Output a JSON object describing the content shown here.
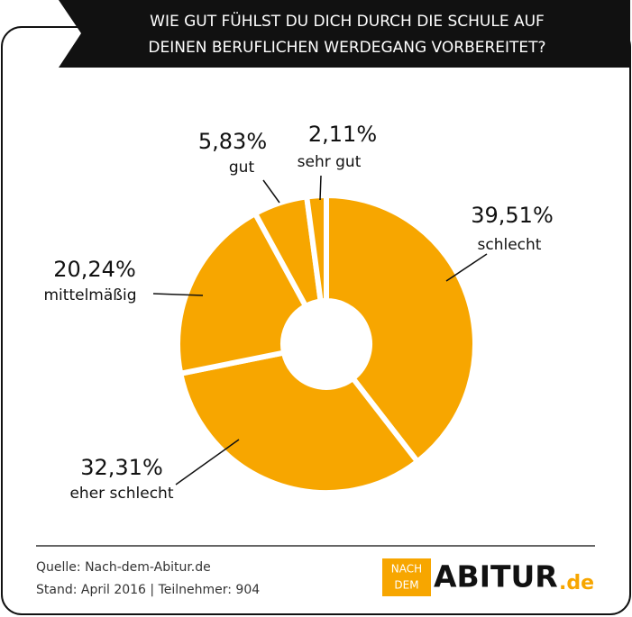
{
  "chart_data": {
    "type": "donut",
    "title": [
      "WIE GUT FÜHLST DU DICH DURCH DIE SCHULE AUF",
      "DEINEN BERUFLICHEN WERDEGANG VORBEREITET?"
    ],
    "categories": [
      "schlecht",
      "eher schlecht",
      "mittelmäßig",
      "gut",
      "sehr gut"
    ],
    "values": [
      39.51,
      32.31,
      20.24,
      5.83,
      2.11
    ],
    "value_labels": [
      "39,51%",
      "32,31%",
      "20,24%",
      "5,83%",
      "2,11%"
    ],
    "color": "#f7a600"
  },
  "footer": {
    "source": "Quelle: Nach-dem-Abitur.de",
    "stand": "Stand: April 2016 | Teilnehmer: 904",
    "logo": {
      "small": [
        "NACH",
        "DEM"
      ],
      "main": "ABITUR",
      "suffix": ".de"
    }
  }
}
